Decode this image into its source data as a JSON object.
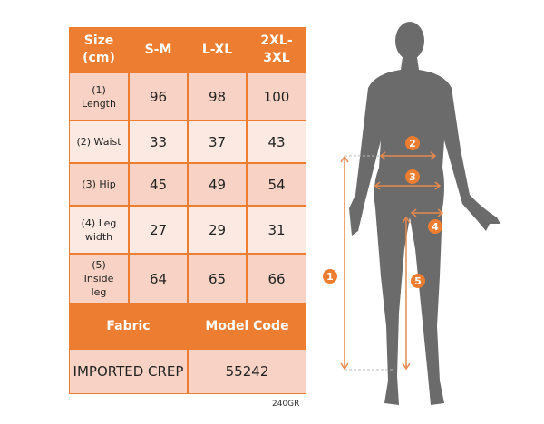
{
  "table": {
    "header": [
      "Size (cm)",
      "S-M",
      "L-XL",
      "2XL-3XL"
    ],
    "header_lines": [
      [
        "Size",
        "(cm)"
      ],
      [
        "S-M"
      ],
      [
        "L-XL"
      ],
      [
        "2XL-",
        "3XL"
      ]
    ],
    "rows": [
      {
        "label_lines": [
          "(1)",
          "Length"
        ],
        "values": [
          "96",
          "98",
          "100"
        ]
      },
      {
        "label_lines": [
          "(2) Waist"
        ],
        "values": [
          "33",
          "37",
          "43"
        ]
      },
      {
        "label_lines": [
          "(3) Hip"
        ],
        "values": [
          "45",
          "49",
          "54"
        ]
      },
      {
        "label_lines": [
          "(4) Leg",
          "width"
        ],
        "values": [
          "27",
          "29",
          "31"
        ]
      },
      {
        "label_lines": [
          "(5)",
          "Inside",
          "leg"
        ],
        "values": [
          "64",
          "65",
          "66"
        ]
      }
    ],
    "fabric_header": "Fabric",
    "model_code_header": "Model Code",
    "fabric_value": "IMPORTED CREP",
    "model_code_value": "55242"
  },
  "note": "240GR",
  "figure": {
    "markers": [
      "1",
      "2",
      "3",
      "4",
      "5"
    ]
  },
  "colors": {
    "accent": "#ed7d31",
    "row_dark": "#f8d3c5",
    "row_light": "#fce9e2",
    "silhouette": "#6b6b6b"
  }
}
